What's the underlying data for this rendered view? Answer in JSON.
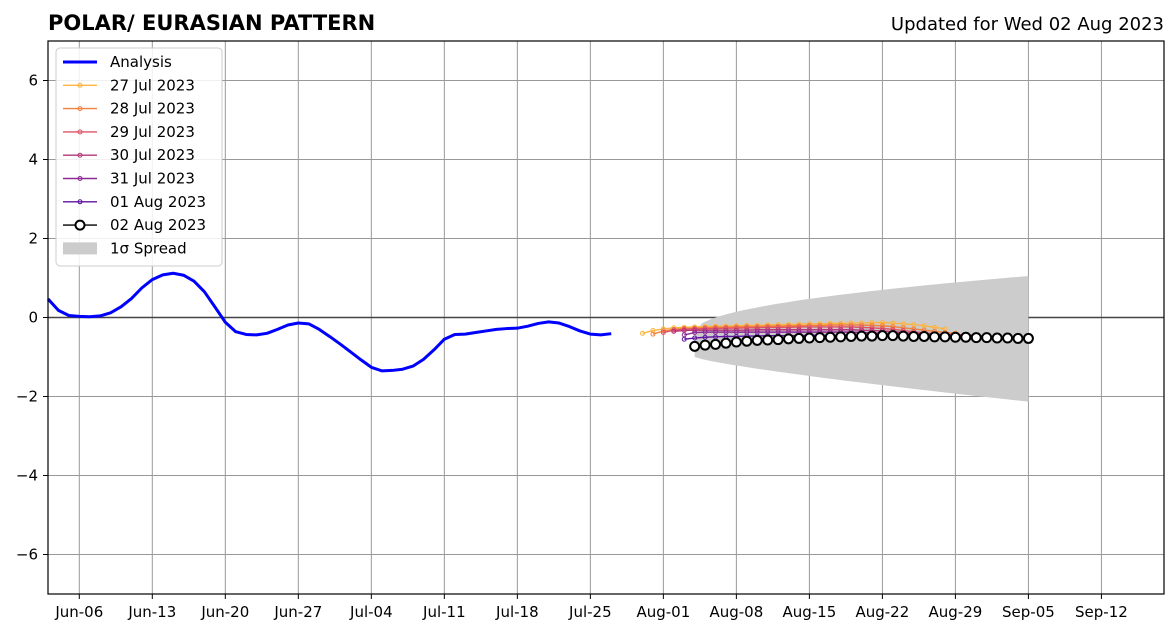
{
  "chart_data": {
    "type": "line",
    "title": "POLAR/ EURASIAN  PATTERN",
    "subtitle": "Updated for Wed 02 Aug 2023",
    "xlabel": "",
    "ylabel": "",
    "ylim": [
      -7,
      7
    ],
    "yticks": [
      -6,
      -4,
      -2,
      0,
      2,
      4,
      6
    ],
    "ytick_labels": [
      "−6",
      "−4",
      "−2",
      "0",
      "2",
      "4",
      "6"
    ],
    "xlim": [
      "2023-06-03",
      "2023-09-18"
    ],
    "xticks": [
      "2023-06-06",
      "2023-06-13",
      "2023-06-20",
      "2023-06-27",
      "2023-07-04",
      "2023-07-11",
      "2023-07-18",
      "2023-07-25",
      "2023-08-01",
      "2023-08-08",
      "2023-08-15",
      "2023-08-22",
      "2023-08-29",
      "2023-09-05",
      "2023-09-12"
    ],
    "xtick_labels": [
      "Jun-06",
      "Jun-13",
      "Jun-20",
      "Jun-27",
      "Jul-04",
      "Jul-11",
      "Jul-18",
      "Jul-25",
      "Aug-01",
      "Aug-08",
      "Aug-15",
      "Aug-22",
      "Aug-29",
      "Sep-05",
      "Sep-12"
    ],
    "grid": true,
    "zero_line": true,
    "legend_position": "top-left",
    "analysis": {
      "name": "Analysis",
      "color": "#0000ff",
      "x": [
        "2023-06-03",
        "2023-06-04",
        "2023-06-05",
        "2023-06-06",
        "2023-06-07",
        "2023-06-08",
        "2023-06-09",
        "2023-06-10",
        "2023-06-11",
        "2023-06-12",
        "2023-06-13",
        "2023-06-14",
        "2023-06-15",
        "2023-06-16",
        "2023-06-17",
        "2023-06-18",
        "2023-06-19",
        "2023-06-20",
        "2023-06-21",
        "2023-06-22",
        "2023-06-23",
        "2023-06-24",
        "2023-06-25",
        "2023-06-26",
        "2023-06-27",
        "2023-06-28",
        "2023-06-29",
        "2023-06-30",
        "2023-07-01",
        "2023-07-02",
        "2023-07-03",
        "2023-07-04",
        "2023-07-05",
        "2023-07-06",
        "2023-07-07",
        "2023-07-08",
        "2023-07-09",
        "2023-07-10",
        "2023-07-11",
        "2023-07-12",
        "2023-07-13",
        "2023-07-14",
        "2023-07-15",
        "2023-07-16",
        "2023-07-17",
        "2023-07-18",
        "2023-07-19",
        "2023-07-20",
        "2023-07-21",
        "2023-07-22",
        "2023-07-23",
        "2023-07-24",
        "2023-07-25",
        "2023-07-26",
        "2023-07-27"
      ],
      "values": [
        0.47,
        0.18,
        0.05,
        0.03,
        0.02,
        0.04,
        0.12,
        0.27,
        0.48,
        0.75,
        0.96,
        1.08,
        1.12,
        1.07,
        0.92,
        0.65,
        0.27,
        -0.12,
        -0.36,
        -0.43,
        -0.44,
        -0.4,
        -0.3,
        -0.19,
        -0.14,
        -0.16,
        -0.3,
        -0.48,
        -0.67,
        -0.87,
        -1.07,
        -1.26,
        -1.35,
        -1.34,
        -1.31,
        -1.23,
        -1.06,
        -0.82,
        -0.55,
        -0.43,
        -0.42,
        -0.38,
        -0.34,
        -0.3,
        -0.28,
        -0.27,
        -0.22,
        -0.15,
        -0.11,
        -0.14,
        -0.23,
        -0.34,
        -0.42,
        -0.44,
        -0.41
      ]
    },
    "forecasts": [
      {
        "name": "27 Jul 2023",
        "color": "#fbb540",
        "start": "2023-07-30",
        "values": [
          -0.4,
          -0.33,
          -0.29,
          -0.26,
          -0.25,
          -0.24,
          -0.23,
          -0.22,
          -0.22,
          -0.21,
          -0.2,
          -0.2,
          -0.19,
          -0.18,
          -0.18,
          -0.17,
          -0.16,
          -0.16,
          -0.15,
          -0.15,
          -0.14,
          -0.14,
          -0.13,
          -0.13,
          -0.14,
          -0.16,
          -0.18,
          -0.21,
          -0.25,
          -0.29
        ]
      },
      {
        "name": "28 Jul 2023",
        "color": "#f3813b",
        "start": "2023-07-31",
        "values": [
          -0.42,
          -0.34,
          -0.3,
          -0.28,
          -0.27,
          -0.26,
          -0.25,
          -0.25,
          -0.24,
          -0.23,
          -0.23,
          -0.22,
          -0.22,
          -0.21,
          -0.21,
          -0.2,
          -0.2,
          -0.19,
          -0.19,
          -0.19,
          -0.19,
          -0.2,
          -0.21,
          -0.23,
          -0.26,
          -0.29,
          -0.32,
          -0.35,
          -0.38,
          -0.4
        ]
      },
      {
        "name": "29 Jul 2023",
        "color": "#de5464",
        "start": "2023-08-01",
        "values": [
          -0.38,
          -0.32,
          -0.3,
          -0.29,
          -0.28,
          -0.28,
          -0.27,
          -0.27,
          -0.26,
          -0.26,
          -0.25,
          -0.25,
          -0.25,
          -0.24,
          -0.24,
          -0.24,
          -0.24,
          -0.24,
          -0.24,
          -0.25,
          -0.26,
          -0.28,
          -0.3,
          -0.33,
          -0.36,
          -0.39,
          -0.41,
          -0.43,
          -0.44,
          -0.45
        ]
      },
      {
        "name": "30 Jul 2023",
        "color": "#b63679",
        "start": "2023-08-02",
        "values": [
          -0.35,
          -0.33,
          -0.32,
          -0.32,
          -0.32,
          -0.32,
          -0.32,
          -0.32,
          -0.31,
          -0.31,
          -0.31,
          -0.31,
          -0.31,
          -0.31,
          -0.31,
          -0.31,
          -0.31,
          -0.31,
          -0.32,
          -0.33,
          -0.34,
          -0.36,
          -0.38,
          -0.4,
          -0.41,
          -0.42,
          -0.43,
          -0.44,
          -0.44,
          -0.45
        ]
      },
      {
        "name": "31 Jul 2023",
        "color": "#8c2a96",
        "start": "2023-08-03",
        "values": [
          -0.44,
          -0.38,
          -0.37,
          -0.37,
          -0.37,
          -0.37,
          -0.37,
          -0.37,
          -0.37,
          -0.37,
          -0.37,
          -0.37,
          -0.37,
          -0.37,
          -0.37,
          -0.37,
          -0.37,
          -0.38,
          -0.39,
          -0.4,
          -0.41,
          -0.42,
          -0.43,
          -0.44,
          -0.45,
          -0.45,
          -0.46,
          -0.46,
          -0.47,
          -0.47
        ]
      },
      {
        "name": "01 Aug 2023",
        "color": "#5f13a0",
        "start": "2023-08-03",
        "values": [
          -0.55,
          -0.52,
          -0.5,
          -0.49,
          -0.48,
          -0.48,
          -0.47,
          -0.47,
          -0.46,
          -0.46,
          -0.46,
          -0.46,
          -0.45,
          -0.45,
          -0.45,
          -0.45,
          -0.45,
          -0.45,
          -0.45,
          -0.46,
          -0.46,
          -0.46,
          -0.47,
          -0.47,
          -0.48,
          -0.48,
          -0.48,
          -0.49,
          -0.49,
          -0.5
        ]
      }
    ],
    "latest": {
      "name": "02 Aug 2023",
      "color": "#000000",
      "start": "2023-08-04",
      "values": [
        -0.73,
        -0.7,
        -0.68,
        -0.65,
        -0.62,
        -0.6,
        -0.58,
        -0.57,
        -0.56,
        -0.54,
        -0.53,
        -0.52,
        -0.51,
        -0.5,
        -0.49,
        -0.48,
        -0.47,
        -0.47,
        -0.46,
        -0.46,
        -0.47,
        -0.48,
        -0.48,
        -0.49,
        -0.49,
        -0.5,
        -0.5,
        -0.51,
        -0.51,
        -0.52,
        -0.52,
        -0.53,
        -0.53
      ]
    },
    "spread": {
      "name": "1σ Spread",
      "color": "#cccccc",
      "start": "2023-08-04",
      "end": "2023-09-05",
      "upper_start": -0.35,
      "upper_end": 1.05,
      "lower_start": -1.0,
      "lower_end": -2.13
    }
  }
}
